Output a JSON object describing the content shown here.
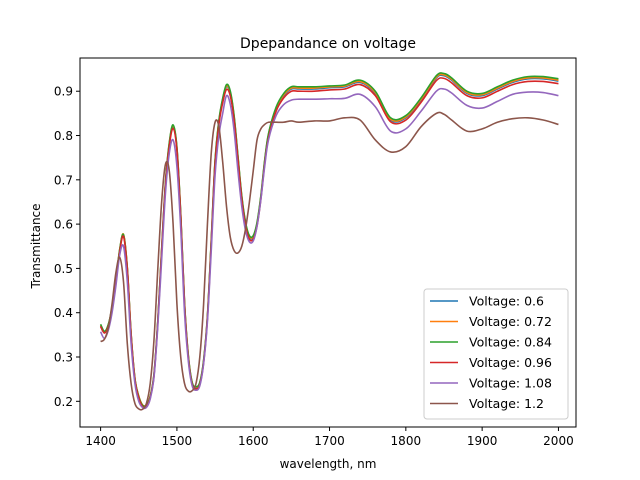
{
  "chart_data": {
    "type": "line",
    "title": "Dpepandance on voltage",
    "xlabel": "wavelength, nm",
    "ylabel": "Transmittance",
    "xlim": [
      1373,
      2023
    ],
    "ylim": [
      0.142,
      0.975
    ],
    "xticks": [
      1400,
      1500,
      1600,
      1700,
      1800,
      1900,
      2000
    ],
    "yticks": [
      0.2,
      0.3,
      0.4,
      0.5,
      0.6,
      0.7,
      0.8,
      0.9
    ],
    "grid": false,
    "legend_position": "lower-right",
    "x": [
      1400,
      1405,
      1410,
      1415,
      1420,
      1425,
      1430,
      1435,
      1440,
      1445,
      1450,
      1455,
      1460,
      1465,
      1470,
      1475,
      1480,
      1485,
      1490,
      1495,
      1500,
      1505,
      1510,
      1515,
      1520,
      1525,
      1530,
      1535,
      1540,
      1545,
      1550,
      1555,
      1560,
      1565,
      1570,
      1575,
      1580,
      1585,
      1590,
      1595,
      1600,
      1605,
      1610,
      1615,
      1620,
      1630,
      1640,
      1650,
      1660,
      1680,
      1700,
      1720,
      1740,
      1760,
      1780,
      1800,
      1820,
      1840,
      1850,
      1860,
      1880,
      1900,
      1920,
      1940,
      1960,
      1980,
      2000
    ],
    "series": [
      {
        "name": "Voltage: 0.6",
        "color": "#1f77b4",
        "values": [
          0.37,
          0.355,
          0.37,
          0.41,
          0.47,
          0.54,
          0.575,
          0.5,
          0.35,
          0.25,
          0.21,
          0.19,
          0.19,
          0.21,
          0.26,
          0.38,
          0.54,
          0.69,
          0.78,
          0.82,
          0.77,
          0.62,
          0.42,
          0.3,
          0.24,
          0.23,
          0.24,
          0.29,
          0.39,
          0.56,
          0.74,
          0.83,
          0.88,
          0.91,
          0.895,
          0.84,
          0.75,
          0.66,
          0.6,
          0.57,
          0.57,
          0.6,
          0.66,
          0.74,
          0.8,
          0.86,
          0.89,
          0.905,
          0.905,
          0.905,
          0.908,
          0.91,
          0.92,
          0.895,
          0.835,
          0.84,
          0.88,
          0.93,
          0.935,
          0.925,
          0.895,
          0.89,
          0.905,
          0.92,
          0.928,
          0.928,
          0.923
        ]
      },
      {
        "name": "Voltage: 0.72",
        "color": "#ff7f0e",
        "values": [
          0.372,
          0.357,
          0.372,
          0.412,
          0.472,
          0.542,
          0.577,
          0.502,
          0.352,
          0.252,
          0.212,
          0.192,
          0.192,
          0.212,
          0.262,
          0.382,
          0.542,
          0.692,
          0.782,
          0.822,
          0.772,
          0.622,
          0.422,
          0.302,
          0.242,
          0.232,
          0.242,
          0.292,
          0.392,
          0.562,
          0.742,
          0.832,
          0.882,
          0.912,
          0.897,
          0.842,
          0.752,
          0.662,
          0.602,
          0.572,
          0.572,
          0.602,
          0.662,
          0.742,
          0.802,
          0.862,
          0.892,
          0.907,
          0.907,
          0.907,
          0.91,
          0.912,
          0.922,
          0.897,
          0.837,
          0.842,
          0.882,
          0.932,
          0.937,
          0.927,
          0.897,
          0.892,
          0.907,
          0.922,
          0.93,
          0.93,
          0.925
        ]
      },
      {
        "name": "Voltage: 0.84",
        "color": "#2ca02c",
        "values": [
          0.374,
          0.358,
          0.373,
          0.413,
          0.473,
          0.543,
          0.576,
          0.501,
          0.351,
          0.251,
          0.211,
          0.191,
          0.191,
          0.211,
          0.262,
          0.383,
          0.543,
          0.694,
          0.784,
          0.824,
          0.774,
          0.624,
          0.423,
          0.303,
          0.243,
          0.233,
          0.243,
          0.293,
          0.393,
          0.564,
          0.744,
          0.834,
          0.884,
          0.915,
          0.9,
          0.844,
          0.754,
          0.664,
          0.604,
          0.574,
          0.574,
          0.604,
          0.664,
          0.744,
          0.804,
          0.864,
          0.895,
          0.91,
          0.91,
          0.91,
          0.912,
          0.914,
          0.925,
          0.9,
          0.84,
          0.845,
          0.885,
          0.935,
          0.94,
          0.93,
          0.9,
          0.895,
          0.91,
          0.925,
          0.933,
          0.933,
          0.928
        ]
      },
      {
        "name": "Voltage: 0.96",
        "color": "#d62728",
        "values": [
          0.369,
          0.354,
          0.369,
          0.408,
          0.468,
          0.538,
          0.572,
          0.497,
          0.347,
          0.248,
          0.208,
          0.188,
          0.188,
          0.208,
          0.258,
          0.378,
          0.537,
          0.687,
          0.776,
          0.816,
          0.766,
          0.616,
          0.417,
          0.297,
          0.238,
          0.228,
          0.238,
          0.287,
          0.387,
          0.556,
          0.735,
          0.825,
          0.874,
          0.904,
          0.889,
          0.834,
          0.745,
          0.656,
          0.596,
          0.566,
          0.566,
          0.596,
          0.656,
          0.735,
          0.795,
          0.855,
          0.885,
          0.9,
          0.9,
          0.9,
          0.903,
          0.905,
          0.915,
          0.89,
          0.831,
          0.835,
          0.875,
          0.924,
          0.929,
          0.919,
          0.89,
          0.885,
          0.9,
          0.915,
          0.922,
          0.922,
          0.917
        ]
      },
      {
        "name": "Voltage: 1.08",
        "color": "#9467bd",
        "values": [
          0.357,
          0.342,
          0.36,
          0.4,
          0.46,
          0.53,
          0.55,
          0.47,
          0.33,
          0.24,
          0.2,
          0.186,
          0.186,
          0.205,
          0.255,
          0.37,
          0.52,
          0.67,
          0.76,
          0.79,
          0.73,
          0.59,
          0.4,
          0.29,
          0.235,
          0.225,
          0.235,
          0.285,
          0.38,
          0.54,
          0.71,
          0.8,
          0.85,
          0.89,
          0.87,
          0.81,
          0.72,
          0.64,
          0.585,
          0.56,
          0.562,
          0.595,
          0.655,
          0.73,
          0.79,
          0.845,
          0.87,
          0.88,
          0.882,
          0.882,
          0.883,
          0.884,
          0.893,
          0.865,
          0.81,
          0.815,
          0.855,
          0.9,
          0.905,
          0.896,
          0.868,
          0.862,
          0.877,
          0.893,
          0.898,
          0.897,
          0.89
        ]
      },
      {
        "name": "Voltage: 1.2",
        "color": "#8c564b",
        "values": [
          0.335,
          0.34,
          0.365,
          0.42,
          0.49,
          0.525,
          0.47,
          0.33,
          0.24,
          0.195,
          0.183,
          0.182,
          0.195,
          0.24,
          0.34,
          0.5,
          0.65,
          0.735,
          0.72,
          0.6,
          0.42,
          0.3,
          0.24,
          0.223,
          0.224,
          0.24,
          0.3,
          0.42,
          0.6,
          0.76,
          0.83,
          0.82,
          0.74,
          0.64,
          0.57,
          0.54,
          0.535,
          0.55,
          0.59,
          0.65,
          0.72,
          0.79,
          0.815,
          0.825,
          0.83,
          0.83,
          0.83,
          0.833,
          0.83,
          0.833,
          0.833,
          0.84,
          0.835,
          0.79,
          0.763,
          0.775,
          0.82,
          0.85,
          0.848,
          0.835,
          0.81,
          0.815,
          0.83,
          0.838,
          0.84,
          0.835,
          0.825
        ]
      }
    ]
  }
}
